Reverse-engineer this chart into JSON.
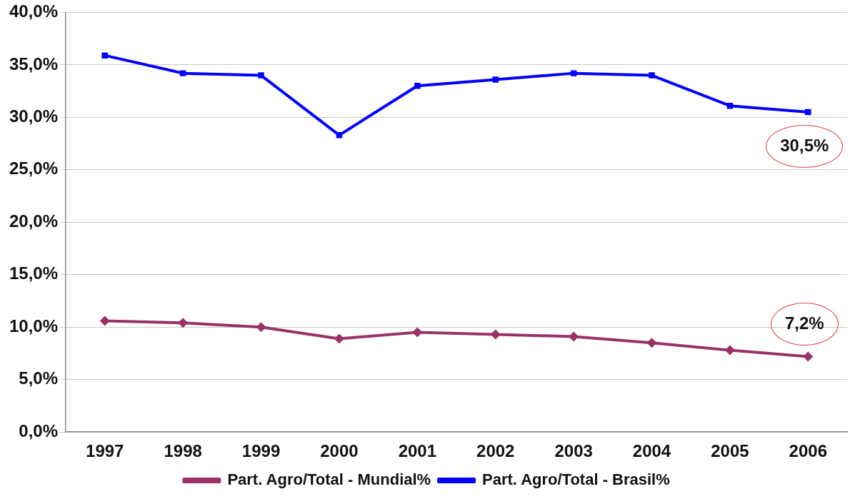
{
  "chart_data": {
    "type": "line",
    "categories": [
      "1997",
      "1998",
      "1999",
      "2000",
      "2001",
      "2002",
      "2003",
      "2004",
      "2005",
      "2006"
    ],
    "series": [
      {
        "name": "Part. Agro/Total - Mundial%",
        "color": "#993366",
        "marker": "diamond",
        "values": [
          10.6,
          10.4,
          10.0,
          8.9,
          9.5,
          9.3,
          9.1,
          8.5,
          7.8,
          7.2
        ]
      },
      {
        "name": "Part. Agro/Total - Brasil%",
        "color": "#0000ff",
        "marker": "square",
        "values": [
          35.9,
          34.2,
          34.0,
          28.3,
          33.0,
          33.6,
          34.2,
          34.0,
          31.1,
          30.5
        ]
      }
    ],
    "ylim": [
      0,
      40
    ],
    "yticks": [
      {
        "value": 0,
        "label": "0,0%"
      },
      {
        "value": 5,
        "label": "5,0%"
      },
      {
        "value": 10,
        "label": "10,0%"
      },
      {
        "value": 15,
        "label": "15,0%"
      },
      {
        "value": 20,
        "label": "20,0%"
      },
      {
        "value": 25,
        "label": "25,0%"
      },
      {
        "value": 30,
        "label": "30,0%"
      },
      {
        "value": 35,
        "label": "35,0%"
      },
      {
        "value": 40,
        "label": "40,0%"
      }
    ],
    "grid": "y",
    "legend": "bottom",
    "line_style": "solid",
    "annotations": [
      {
        "text": "30,5%",
        "x": "2006",
        "y": 30.5
      },
      {
        "text": "7,2%",
        "x": "2006",
        "y": 7.2
      }
    ]
  }
}
